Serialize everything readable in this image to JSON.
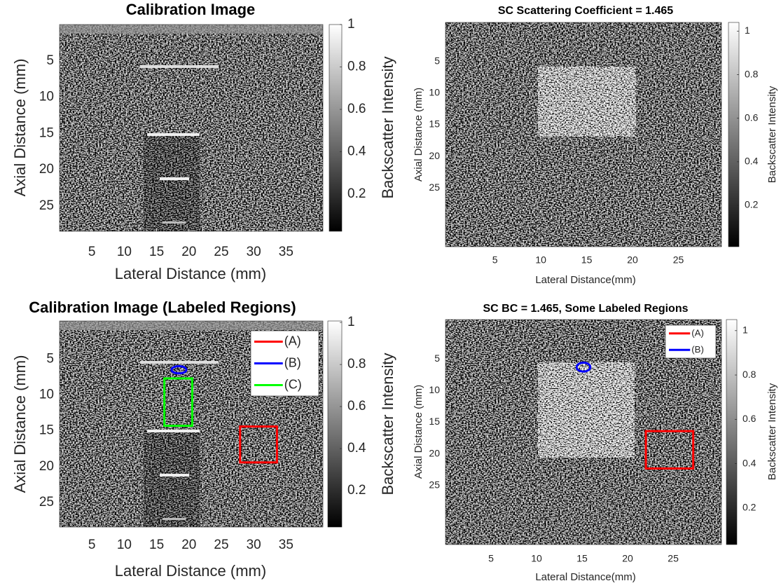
{
  "chart_data": [
    {
      "type": "image",
      "title": "Calibration Image",
      "xlabel": "Lateral Distance (mm)",
      "ylabel": "Axial Distance (mm)",
      "xlim": [
        0,
        40.7
      ],
      "xticks": [
        5,
        10,
        15,
        20,
        25,
        30,
        35
      ],
      "ylim": [
        0,
        28.5
      ],
      "yticks": [
        5,
        10,
        15,
        20,
        25
      ],
      "colorbar": {
        "label": "Backscatter Intensity",
        "lim": [
          0.025,
          1
        ],
        "ticks": [
          0.2,
          0.4,
          0.6,
          0.8,
          1
        ]
      }
    },
    {
      "type": "image",
      "title": "SC Scattering Coefficient = 1.465",
      "xlabel": "Lateral Distance(mm)",
      "ylabel": "Axial Distance (mm)",
      "xlim": [
        -0.4,
        29.7
      ],
      "xticks": [
        5,
        10,
        15,
        20,
        25
      ],
      "ylim": [
        -1.2,
        34.3
      ],
      "yticks": [
        5,
        10,
        15,
        20,
        25
      ],
      "colorbar": {
        "label": "Backscatter Intensity",
        "lim": [
          0.01,
          1.04
        ],
        "ticks": [
          0.2,
          0.4,
          0.6,
          0.8,
          1
        ]
      }
    },
    {
      "type": "image",
      "title": "Calibration Image (Labeled Regions)",
      "xlabel": "Lateral Distance (mm)",
      "ylabel": "Axial Distance (mm)",
      "xlim": [
        0,
        40.7
      ],
      "xticks": [
        5,
        10,
        15,
        20,
        25,
        30,
        35
      ],
      "ylim": [
        -0.3,
        28.4
      ],
      "yticks": [
        5,
        10,
        15,
        20,
        25
      ],
      "colorbar": {
        "label": "Backscatter Intensity",
        "lim": [
          0.027,
          1.007
        ],
        "ticks": [
          0.2,
          0.4,
          0.6,
          0.8,
          1
        ]
      },
      "series": [
        {
          "name": "(A)",
          "color": "#ff0000",
          "x": [
            27.9,
            33.6
          ],
          "y": [
            14.4,
            19.4
          ]
        },
        {
          "name": "(B)",
          "color": "#0000ff",
          "x": [
            17.3,
            19.6
          ],
          "y": [
            6.0,
            7.0
          ],
          "shape": "ellipse"
        },
        {
          "name": "(C)",
          "color": "#00ff00",
          "x": [
            16.2,
            20.5
          ],
          "y": [
            7.7,
            14.3
          ]
        }
      ]
    },
    {
      "type": "image",
      "title": "SC BC = 1.465, Some Labeled Regions",
      "xlabel": "Lateral Distance(mm)",
      "ylabel": "Axial Distance (mm)",
      "xlim": [
        0,
        30.3
      ],
      "xticks": [
        5,
        10,
        15,
        20,
        25
      ],
      "ylim": [
        -1.2,
        34.3
      ],
      "yticks": [
        5,
        10,
        15,
        20,
        25
      ],
      "colorbar": {
        "label": "Backscatter Intensity",
        "lim": [
          0.035,
          1.05
        ],
        "ticks": [
          0.2,
          0.4,
          0.6,
          0.8,
          1
        ]
      },
      "series": [
        {
          "name": "(A)",
          "color": "#ff0000",
          "x": [
            22,
            27.2
          ],
          "y": [
            16.4,
            22.3
          ]
        },
        {
          "name": "(B)",
          "color": "#0000ff",
          "x": [
            14.4,
            15.9
          ],
          "y": [
            5.6,
            7.0
          ],
          "shape": "ellipse"
        }
      ]
    }
  ]
}
